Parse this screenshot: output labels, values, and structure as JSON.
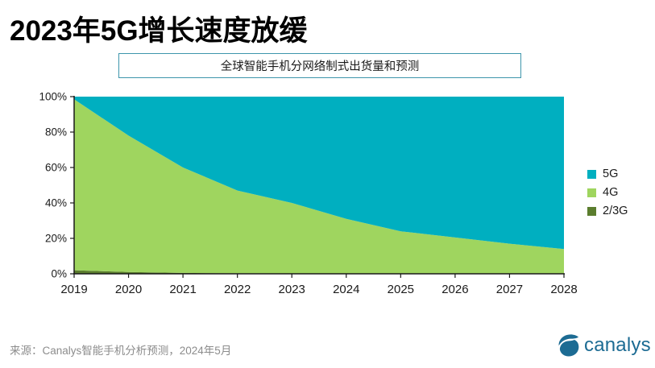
{
  "title": "2023年5G增长速度放缓",
  "subtitle": {
    "text": "全球智能手机分网络制式出货量和预测",
    "border_color": "#3e96ac"
  },
  "footer": {
    "source": "来源：Canalys智能手机分析预测，2024年5月"
  },
  "logo": {
    "text": "canalys",
    "color": "#1c6b93"
  },
  "chart_data": {
    "type": "area",
    "stacked": true,
    "title": "全球智能手机分网络制式出货量和预测",
    "x": [
      2019,
      2020,
      2021,
      2022,
      2023,
      2024,
      2025,
      2026,
      2027,
      2028
    ],
    "series": [
      {
        "name": "5G",
        "color": "#00afc0",
        "values": [
          1.5,
          22,
          40,
          53,
          60,
          69,
          76,
          79.5,
          83,
          86
        ]
      },
      {
        "name": "4G",
        "color": "#9fd55f",
        "values": [
          96.5,
          77,
          59.5,
          46.7,
          39.8,
          30.9,
          23.9,
          20.5,
          17,
          14
        ]
      },
      {
        "name": "2/3G",
        "color": "#5b7d2e",
        "values": [
          2,
          1,
          0.5,
          0.3,
          0.2,
          0.1,
          0.1,
          0,
          0,
          0
        ]
      }
    ],
    "stack_order_bottom_to_top": [
      "2/3G",
      "4G",
      "5G"
    ],
    "ylim": [
      0,
      100
    ],
    "yticks": [
      "0%",
      "20%",
      "40%",
      "60%",
      "80%",
      "100%"
    ],
    "unit": "percent-share",
    "grid": false,
    "legend_position": "right",
    "axis_color": "#1a1a1a"
  }
}
